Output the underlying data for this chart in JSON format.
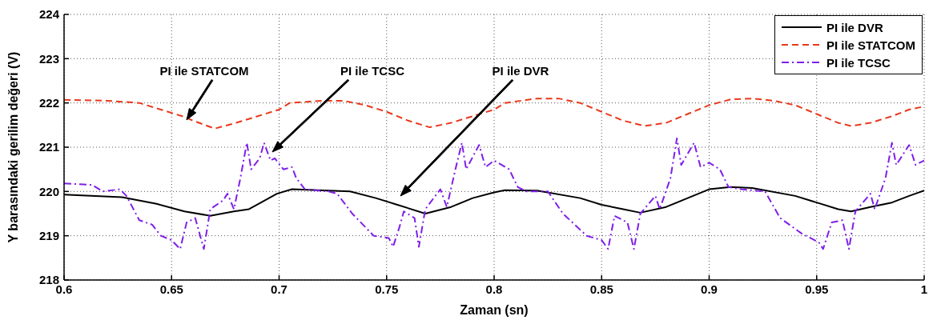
{
  "chart_data": {
    "type": "line",
    "xlabel": "Zaman (sn)",
    "ylabel": "Y barasındaki gerilim değeri (V)",
    "xlim": [
      0.6,
      1
    ],
    "xticks": [
      0.6,
      0.65,
      0.7,
      0.75,
      0.8,
      0.85,
      0.9,
      0.95,
      1
    ],
    "ylim": [
      218,
      224
    ],
    "yticks": [
      218,
      219,
      220,
      221,
      222,
      223,
      224
    ],
    "grid": true,
    "legend": "top right",
    "marker": "none",
    "series": [
      {
        "name": "PI ile DVR",
        "color": "#000000",
        "line_style": "solid",
        "x": [
          0.6,
          0.627,
          0.643,
          0.656,
          0.668,
          0.679,
          0.686,
          0.699,
          0.706,
          0.733,
          0.745,
          0.755,
          0.768,
          0.78,
          0.79,
          0.8,
          0.805,
          0.82,
          0.84,
          0.85,
          0.86,
          0.868,
          0.88,
          0.89,
          0.9,
          0.91,
          0.92,
          0.94,
          0.95,
          0.96,
          0.966,
          0.975,
          0.985,
          0.993,
          1.0
        ],
        "values": [
          219.93,
          219.87,
          219.72,
          219.55,
          219.45,
          219.55,
          219.6,
          219.95,
          220.05,
          220.0,
          219.85,
          219.7,
          219.5,
          219.65,
          219.85,
          219.98,
          220.03,
          220.02,
          219.85,
          219.7,
          219.6,
          219.52,
          219.65,
          219.85,
          220.05,
          220.1,
          220.08,
          219.9,
          219.75,
          219.6,
          219.55,
          219.65,
          219.75,
          219.9,
          220.02
        ]
      },
      {
        "name": "PI ile STATCOM",
        "color": "#e8391c",
        "line_style": "dashed",
        "x": [
          0.6,
          0.62,
          0.635,
          0.645,
          0.655,
          0.66,
          0.67,
          0.68,
          0.69,
          0.7,
          0.705,
          0.72,
          0.73,
          0.74,
          0.75,
          0.76,
          0.77,
          0.78,
          0.79,
          0.8,
          0.805,
          0.82,
          0.83,
          0.84,
          0.85,
          0.86,
          0.87,
          0.88,
          0.89,
          0.9,
          0.91,
          0.92,
          0.93,
          0.94,
          0.95,
          0.96,
          0.966,
          0.975,
          0.985,
          0.993,
          1.0
        ],
        "values": [
          222.07,
          222.05,
          222.0,
          221.85,
          221.7,
          221.6,
          221.42,
          221.55,
          221.7,
          221.85,
          222.0,
          222.05,
          222.05,
          221.95,
          221.8,
          221.6,
          221.45,
          221.55,
          221.7,
          221.85,
          222.0,
          222.1,
          222.1,
          222.0,
          221.8,
          221.6,
          221.48,
          221.55,
          221.75,
          221.95,
          222.08,
          222.1,
          222.05,
          221.95,
          221.75,
          221.55,
          221.48,
          221.55,
          221.7,
          221.85,
          221.92
        ]
      },
      {
        "name": "PI ile TCSC",
        "color": "#7f1fe8",
        "line_style": "dashdot",
        "x": [
          0.6,
          0.613,
          0.618,
          0.626,
          0.629,
          0.635,
          0.641,
          0.645,
          0.65,
          0.654,
          0.657,
          0.661,
          0.665,
          0.668,
          0.674,
          0.676,
          0.679,
          0.682,
          0.685,
          0.687,
          0.691,
          0.693,
          0.696,
          0.698,
          0.702,
          0.706,
          0.708,
          0.712,
          0.723,
          0.727,
          0.734,
          0.744,
          0.751,
          0.753,
          0.756,
          0.758,
          0.763,
          0.765,
          0.768,
          0.775,
          0.778,
          0.782,
          0.785,
          0.787,
          0.793,
          0.796,
          0.8,
          0.807,
          0.811,
          0.815,
          0.825,
          0.832,
          0.843,
          0.85,
          0.853,
          0.856,
          0.862,
          0.865,
          0.868,
          0.875,
          0.877,
          0.882,
          0.885,
          0.887,
          0.893,
          0.896,
          0.9,
          0.905,
          0.909,
          0.915,
          0.926,
          0.933,
          0.943,
          0.951,
          0.953,
          0.957,
          0.962,
          0.965,
          0.968,
          0.975,
          0.977,
          0.982,
          0.985,
          0.987,
          0.993,
          0.996,
          1.0
        ],
        "values": [
          220.18,
          220.15,
          220.0,
          220.05,
          219.9,
          219.35,
          219.25,
          219.0,
          218.9,
          218.7,
          219.3,
          219.4,
          218.7,
          219.6,
          219.8,
          219.95,
          219.6,
          220.3,
          221.1,
          220.5,
          220.75,
          221.1,
          220.7,
          220.75,
          220.5,
          220.55,
          220.3,
          220.05,
          220.0,
          219.95,
          219.5,
          219.0,
          218.95,
          218.75,
          219.2,
          219.55,
          219.4,
          218.75,
          219.6,
          220.05,
          219.65,
          220.5,
          221.1,
          220.5,
          221.05,
          220.55,
          220.7,
          220.5,
          220.1,
          220.0,
          220.0,
          219.5,
          219.0,
          218.9,
          218.7,
          219.45,
          219.3,
          218.7,
          219.5,
          219.9,
          219.6,
          220.3,
          221.2,
          220.6,
          221.1,
          220.55,
          220.65,
          220.5,
          220.1,
          220.05,
          220.0,
          219.4,
          219.05,
          218.85,
          218.7,
          219.3,
          219.35,
          218.7,
          219.55,
          219.95,
          219.6,
          220.3,
          221.1,
          220.6,
          221.05,
          220.6,
          220.7
        ]
      }
    ],
    "annotations": [
      "PI ile STATCOM",
      "PI ile TCSC",
      "PI ile DVR"
    ]
  }
}
